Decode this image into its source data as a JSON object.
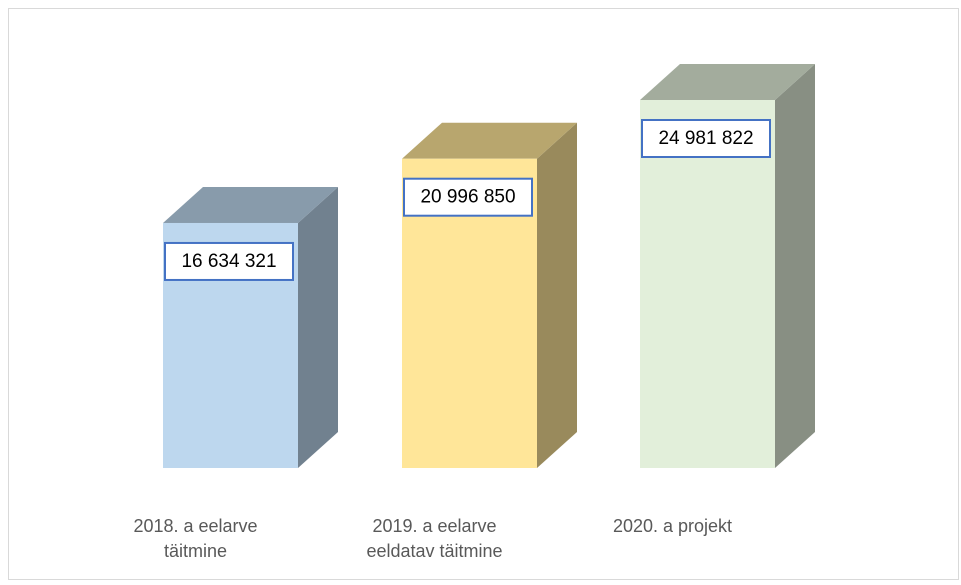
{
  "chart_data": {
    "type": "bar3d",
    "categories": [
      "2018. a eelarve täitmine",
      "2019. a eelarve eeldatav täitmine",
      "2020. a projekt"
    ],
    "values": [
      16634321,
      20996850,
      24981822
    ],
    "value_labels": [
      "16 634 321",
      "20 996 850",
      "24 981 822"
    ],
    "colors": [
      "#bdd7ee",
      "#ffe699",
      "#e2efda"
    ]
  }
}
